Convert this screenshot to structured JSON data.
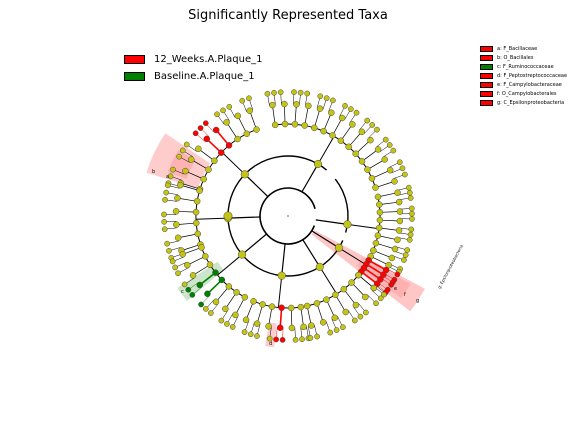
{
  "figure": {
    "title": "Significantly Represented Taxa"
  },
  "legend": {
    "items": [
      {
        "label": "12_Weeks.A.Plaque_1",
        "color": "#ff0000"
      },
      {
        "label": "Baseline.A.Plaque_1",
        "color": "#008000"
      }
    ]
  },
  "key": {
    "items": [
      {
        "text": "a: F_Bacillaceae",
        "color": "#ff0000"
      },
      {
        "text": "b: O_Bacillales",
        "color": "#ff0000"
      },
      {
        "text": "c: F_Ruminococcaceae",
        "color": "#008000"
      },
      {
        "text": "d: F_Peptostreptococcaceae",
        "color": "#ff0000"
      },
      {
        "text": "e: F_Campylobacteraceae",
        "color": "#ff0000"
      },
      {
        "text": "f: O_Campylobacterales",
        "color": "#ff0000"
      },
      {
        "text": "g: C_Epsilonproteobacteria",
        "color": "#ff0000"
      }
    ]
  },
  "colors": {
    "node": "#c4c414",
    "node_red": "#ff0000",
    "node_green": "#008000",
    "highlight_red": "#ff8080",
    "highlight_green": "#80c080"
  },
  "cladogram": {
    "clade_labels": [
      {
        "text": "a"
      },
      {
        "text": "b"
      },
      {
        "text": "c"
      },
      {
        "text": "d"
      },
      {
        "text": "e"
      },
      {
        "text": "f"
      },
      {
        "text": "g"
      },
      {
        "text": "g: Epsilonproteobacteria"
      }
    ]
  }
}
